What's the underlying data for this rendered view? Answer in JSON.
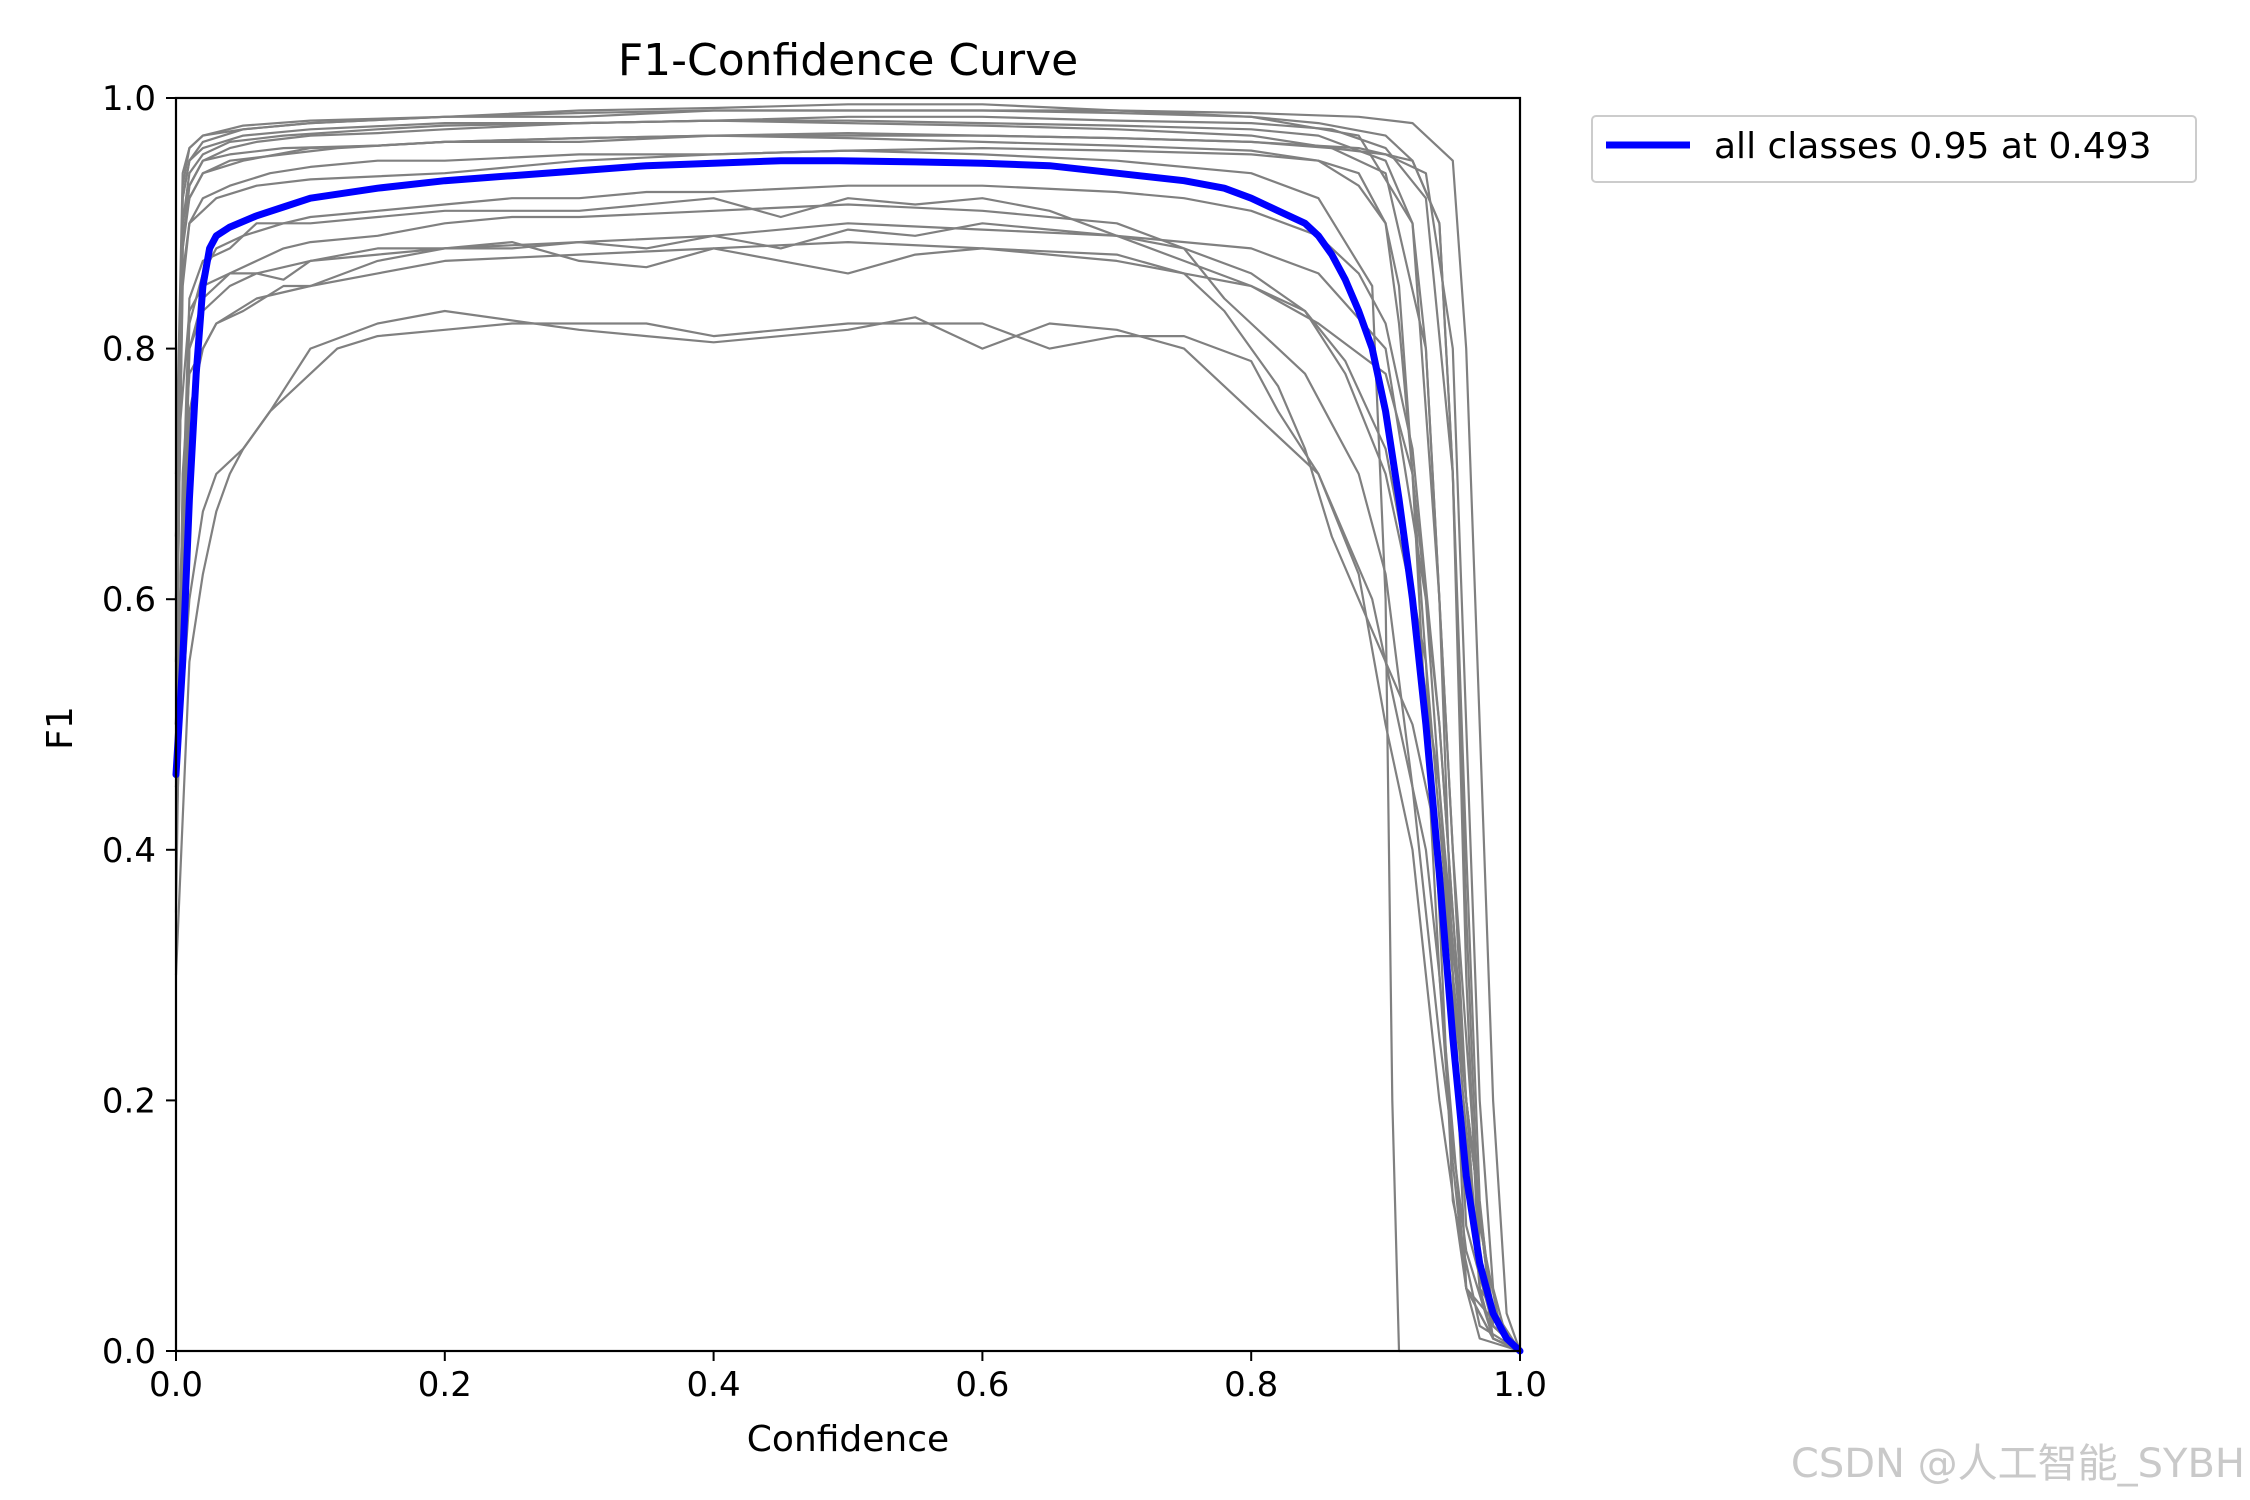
{
  "chart_data": {
    "type": "line",
    "title": "F1-Confidence Curve",
    "xlabel": "Confidence",
    "ylabel": "F1",
    "xlim": [
      0.0,
      1.0
    ],
    "ylim": [
      0.0,
      1.0
    ],
    "xticks": [
      "0.0",
      "0.2",
      "0.4",
      "0.6",
      "0.8",
      "1.0"
    ],
    "yticks": [
      "0.0",
      "0.2",
      "0.4",
      "0.6",
      "0.8",
      "1.0"
    ],
    "grid": false,
    "legend": {
      "placement": "outside-top-right",
      "entries": [
        "all classes 0.95 at 0.493"
      ]
    },
    "colors": {
      "per_class": "#808080",
      "all_classes": "#0000ff"
    },
    "series": [
      {
        "name": "all classes 0.95 at 0.493",
        "color": "#0000ff",
        "x": [
          0.0,
          0.005,
          0.01,
          0.015,
          0.02,
          0.025,
          0.03,
          0.04,
          0.06,
          0.08,
          0.1,
          0.15,
          0.2,
          0.25,
          0.3,
          0.35,
          0.4,
          0.45,
          0.493,
          0.55,
          0.6,
          0.65,
          0.7,
          0.75,
          0.78,
          0.8,
          0.82,
          0.84,
          0.85,
          0.86,
          0.87,
          0.88,
          0.89,
          0.9,
          0.91,
          0.92,
          0.93,
          0.94,
          0.95,
          0.96,
          0.97,
          0.98,
          0.99,
          1.0
        ],
        "y": [
          0.46,
          0.55,
          0.68,
          0.78,
          0.85,
          0.88,
          0.89,
          0.897,
          0.906,
          0.913,
          0.92,
          0.928,
          0.934,
          0.938,
          0.942,
          0.946,
          0.948,
          0.95,
          0.95,
          0.949,
          0.948,
          0.946,
          0.94,
          0.934,
          0.928,
          0.92,
          0.91,
          0.9,
          0.89,
          0.875,
          0.855,
          0.83,
          0.8,
          0.75,
          0.68,
          0.6,
          0.5,
          0.38,
          0.25,
          0.14,
          0.07,
          0.03,
          0.01,
          0.0
        ]
      }
    ],
    "per_class_series": [
      {
        "x": [
          0,
          0.005,
          0.01,
          0.02,
          0.04,
          0.06,
          0.1,
          0.15,
          0.2,
          0.3,
          0.4,
          0.5,
          0.6,
          0.7,
          0.8,
          0.86,
          0.9,
          0.93,
          0.95,
          0.97,
          0.985,
          1.0
        ],
        "y": [
          0.5,
          0.88,
          0.93,
          0.95,
          0.96,
          0.965,
          0.97,
          0.972,
          0.975,
          0.98,
          0.982,
          0.98,
          0.978,
          0.975,
          0.97,
          0.96,
          0.94,
          0.8,
          0.4,
          0.1,
          0.02,
          0.0
        ]
      },
      {
        "x": [
          0,
          0.005,
          0.01,
          0.02,
          0.05,
          0.1,
          0.2,
          0.3,
          0.4,
          0.5,
          0.6,
          0.7,
          0.8,
          0.88,
          0.92,
          0.94,
          0.96,
          0.97,
          0.98,
          1.0
        ],
        "y": [
          0.6,
          0.92,
          0.95,
          0.965,
          0.975,
          0.98,
          0.985,
          0.99,
          0.992,
          0.995,
          0.995,
          0.99,
          0.985,
          0.97,
          0.9,
          0.6,
          0.2,
          0.05,
          0.01,
          0.0
        ]
      },
      {
        "x": [
          0,
          0.005,
          0.01,
          0.03,
          0.06,
          0.1,
          0.15,
          0.2,
          0.3,
          0.4,
          0.5,
          0.6,
          0.7,
          0.8,
          0.85,
          0.9,
          0.93,
          0.95,
          0.96,
          0.98,
          1.0
        ],
        "y": [
          0.35,
          0.7,
          0.78,
          0.82,
          0.84,
          0.85,
          0.87,
          0.88,
          0.885,
          0.89,
          0.9,
          0.895,
          0.89,
          0.88,
          0.86,
          0.8,
          0.6,
          0.3,
          0.1,
          0.02,
          0.0
        ]
      },
      {
        "x": [
          0,
          0.01,
          0.02,
          0.03,
          0.04,
          0.05,
          0.07,
          0.1,
          0.15,
          0.2,
          0.3,
          0.35,
          0.4,
          0.5,
          0.55,
          0.6,
          0.65,
          0.7,
          0.75,
          0.8,
          0.85,
          0.88,
          0.9,
          0.92,
          0.94,
          0.96,
          0.98,
          1.0
        ],
        "y": [
          0.3,
          0.55,
          0.62,
          0.67,
          0.7,
          0.72,
          0.75,
          0.8,
          0.82,
          0.83,
          0.815,
          0.81,
          0.805,
          0.815,
          0.825,
          0.8,
          0.82,
          0.815,
          0.8,
          0.75,
          0.7,
          0.62,
          0.5,
          0.4,
          0.2,
          0.05,
          0.01,
          0.0
        ]
      },
      {
        "x": [
          0,
          0.01,
          0.02,
          0.04,
          0.06,
          0.08,
          0.1,
          0.15,
          0.2,
          0.25,
          0.3,
          0.35,
          0.4,
          0.45,
          0.5,
          0.55,
          0.6,
          0.7,
          0.75,
          0.78,
          0.8,
          0.82,
          0.84,
          0.86,
          0.88,
          0.9,
          0.92,
          0.94,
          0.96,
          0.98,
          1.0
        ],
        "y": [
          0.7,
          0.83,
          0.85,
          0.86,
          0.86,
          0.855,
          0.87,
          0.88,
          0.88,
          0.885,
          0.87,
          0.865,
          0.88,
          0.87,
          0.86,
          0.875,
          0.88,
          0.875,
          0.86,
          0.83,
          0.8,
          0.77,
          0.72,
          0.65,
          0.6,
          0.55,
          0.5,
          0.4,
          0.2,
          0.03,
          0.0
        ]
      },
      {
        "x": [
          0,
          0.005,
          0.01,
          0.03,
          0.06,
          0.1,
          0.2,
          0.3,
          0.4,
          0.5,
          0.6,
          0.7,
          0.8,
          0.85,
          0.88,
          0.9,
          0.91,
          0.92,
          0.93,
          0.94,
          0.96,
          0.98,
          1.0
        ],
        "y": [
          0.55,
          0.85,
          0.9,
          0.92,
          0.93,
          0.935,
          0.94,
          0.95,
          0.955,
          0.958,
          0.96,
          0.958,
          0.955,
          0.95,
          0.93,
          0.9,
          0.85,
          0.7,
          0.5,
          0.3,
          0.05,
          0.01,
          0.0
        ]
      },
      {
        "x": [
          0,
          0.005,
          0.01,
          0.02,
          0.05,
          0.1,
          0.2,
          0.3,
          0.4,
          0.5,
          0.6,
          0.7,
          0.8,
          0.85,
          0.9,
          0.92,
          0.94,
          0.95,
          0.96,
          0.97,
          0.98,
          1.0
        ],
        "y": [
          0.65,
          0.93,
          0.96,
          0.97,
          0.975,
          0.98,
          0.985,
          0.985,
          0.99,
          0.99,
          0.99,
          0.988,
          0.985,
          0.98,
          0.97,
          0.95,
          0.9,
          0.7,
          0.3,
          0.05,
          0.01,
          0.0
        ]
      },
      {
        "x": [
          0,
          0.01,
          0.02,
          0.04,
          0.06,
          0.08,
          0.1,
          0.15,
          0.2,
          0.25,
          0.3,
          0.4,
          0.5,
          0.6,
          0.7,
          0.75,
          0.78,
          0.8,
          0.82,
          0.84,
          0.86,
          0.88,
          0.9,
          0.92,
          0.94,
          0.96,
          0.98,
          1.0
        ],
        "y": [
          0.4,
          0.8,
          0.84,
          0.86,
          0.87,
          0.88,
          0.885,
          0.89,
          0.9,
          0.905,
          0.905,
          0.91,
          0.915,
          0.91,
          0.9,
          0.88,
          0.84,
          0.82,
          0.8,
          0.78,
          0.74,
          0.7,
          0.62,
          0.45,
          0.25,
          0.08,
          0.01,
          0.0
        ]
      },
      {
        "x": [
          0,
          0.005,
          0.01,
          0.02,
          0.04,
          0.08,
          0.12,
          0.2,
          0.3,
          0.4,
          0.5,
          0.6,
          0.7,
          0.8,
          0.85,
          0.88,
          0.9,
          0.91,
          0.92,
          0.93,
          0.94,
          0.95,
          0.97,
          1.0
        ],
        "y": [
          0.5,
          0.89,
          0.92,
          0.94,
          0.95,
          0.955,
          0.96,
          0.965,
          0.965,
          0.97,
          0.968,
          0.965,
          0.962,
          0.958,
          0.95,
          0.94,
          0.9,
          0.82,
          0.7,
          0.55,
          0.35,
          0.12,
          0.02,
          0.0
        ]
      },
      {
        "x": [
          0,
          0.01,
          0.02,
          0.03,
          0.05,
          0.07,
          0.1,
          0.12,
          0.15,
          0.2,
          0.25,
          0.3,
          0.35,
          0.4,
          0.45,
          0.5,
          0.55,
          0.6,
          0.65,
          0.7,
          0.75,
          0.8,
          0.82,
          0.85,
          0.87,
          0.89,
          0.9,
          0.91,
          0.92,
          0.93,
          0.94,
          0.95,
          0.96,
          0.97,
          1.0
        ],
        "y": [
          0.45,
          0.6,
          0.67,
          0.7,
          0.72,
          0.75,
          0.78,
          0.8,
          0.81,
          0.815,
          0.82,
          0.82,
          0.82,
          0.81,
          0.815,
          0.82,
          0.82,
          0.82,
          0.8,
          0.81,
          0.81,
          0.79,
          0.75,
          0.7,
          0.65,
          0.6,
          0.55,
          0.5,
          0.45,
          0.4,
          0.3,
          0.15,
          0.05,
          0.01,
          0.0
        ]
      },
      {
        "x": [
          0,
          0.005,
          0.01,
          0.02,
          0.04,
          0.08,
          0.15,
          0.2,
          0.3,
          0.4,
          0.5,
          0.6,
          0.7,
          0.8,
          0.86,
          0.9,
          0.93,
          0.95,
          0.96,
          0.97,
          0.98,
          0.99,
          1.0
        ],
        "y": [
          0.6,
          0.9,
          0.93,
          0.95,
          0.955,
          0.96,
          0.962,
          0.965,
          0.968,
          0.97,
          0.97,
          0.97,
          0.968,
          0.965,
          0.96,
          0.955,
          0.94,
          0.8,
          0.5,
          0.2,
          0.05,
          0.01,
          0.0
        ]
      },
      {
        "x": [
          0,
          0.01,
          0.02,
          0.04,
          0.06,
          0.1,
          0.15,
          0.2,
          0.25,
          0.3,
          0.4,
          0.45,
          0.5,
          0.55,
          0.6,
          0.65,
          0.7,
          0.75,
          0.8,
          0.84,
          0.87,
          0.9,
          0.92,
          0.94,
          0.96,
          0.98,
          1.0
        ],
        "y": [
          0.5,
          0.84,
          0.87,
          0.88,
          0.9,
          0.9,
          0.905,
          0.91,
          0.91,
          0.91,
          0.92,
          0.905,
          0.92,
          0.915,
          0.92,
          0.91,
          0.89,
          0.87,
          0.85,
          0.83,
          0.78,
          0.7,
          0.6,
          0.45,
          0.2,
          0.02,
          0.0
        ]
      },
      {
        "x": [
          0,
          0.005,
          0.01,
          0.02,
          0.05,
          0.1,
          0.2,
          0.3,
          0.4,
          0.5,
          0.6,
          0.7,
          0.8,
          0.88,
          0.92,
          0.95,
          0.96,
          0.97,
          0.98,
          0.99,
          1.0
        ],
        "y": [
          0.7,
          0.94,
          0.96,
          0.97,
          0.978,
          0.982,
          0.985,
          0.988,
          0.99,
          0.99,
          0.99,
          0.99,
          0.988,
          0.985,
          0.98,
          0.95,
          0.8,
          0.5,
          0.2,
          0.03,
          0.0
        ]
      },
      {
        "x": [
          0,
          0.01,
          0.02,
          0.03,
          0.05,
          0.08,
          0.1,
          0.15,
          0.2,
          0.3,
          0.4,
          0.5,
          0.6,
          0.7,
          0.75,
          0.8,
          0.85,
          0.9,
          0.92,
          0.94,
          0.96,
          0.98,
          1.0
        ],
        "y": [
          0.4,
          0.75,
          0.8,
          0.82,
          0.83,
          0.85,
          0.85,
          0.86,
          0.87,
          0.875,
          0.88,
          0.885,
          0.88,
          0.87,
          0.86,
          0.85,
          0.82,
          0.78,
          0.7,
          0.5,
          0.2,
          0.02,
          0.0
        ]
      },
      {
        "x": [
          0,
          0.005,
          0.01,
          0.02,
          0.04,
          0.07,
          0.1,
          0.15,
          0.2,
          0.3,
          0.4,
          0.5,
          0.6,
          0.7,
          0.8,
          0.85,
          0.89,
          0.9,
          0.905,
          0.91,
          1.0
        ],
        "y": [
          0.55,
          0.86,
          0.9,
          0.92,
          0.93,
          0.94,
          0.945,
          0.95,
          0.95,
          0.955,
          0.955,
          0.958,
          0.955,
          0.95,
          0.94,
          0.92,
          0.85,
          0.6,
          0.2,
          0.0,
          0.0
        ]
      },
      {
        "x": [
          0,
          0.005,
          0.01,
          0.02,
          0.05,
          0.1,
          0.15,
          0.2,
          0.3,
          0.4,
          0.5,
          0.6,
          0.7,
          0.8,
          0.88,
          0.92,
          0.94,
          0.95,
          0.96,
          0.97,
          0.98,
          1.0
        ],
        "y": [
          0.5,
          0.88,
          0.92,
          0.94,
          0.95,
          0.96,
          0.962,
          0.965,
          0.968,
          0.97,
          0.972,
          0.97,
          0.968,
          0.965,
          0.96,
          0.95,
          0.9,
          0.7,
          0.35,
          0.08,
          0.01,
          0.0
        ]
      },
      {
        "x": [
          0,
          0.01,
          0.02,
          0.04,
          0.06,
          0.1,
          0.15,
          0.2,
          0.25,
          0.3,
          0.35,
          0.4,
          0.45,
          0.5,
          0.55,
          0.6,
          0.65,
          0.7,
          0.75,
          0.8,
          0.84,
          0.87,
          0.9,
          0.93,
          0.95,
          0.97,
          1.0
        ],
        "y": [
          0.45,
          0.8,
          0.83,
          0.85,
          0.86,
          0.87,
          0.875,
          0.88,
          0.88,
          0.885,
          0.88,
          0.89,
          0.88,
          0.895,
          0.89,
          0.9,
          0.895,
          0.89,
          0.88,
          0.86,
          0.83,
          0.79,
          0.72,
          0.55,
          0.3,
          0.05,
          0.0
        ]
      },
      {
        "x": [
          0,
          0.005,
          0.01,
          0.02,
          0.04,
          0.08,
          0.15,
          0.2,
          0.3,
          0.4,
          0.5,
          0.6,
          0.7,
          0.8,
          0.85,
          0.9,
          0.92,
          0.93,
          0.94,
          0.95,
          0.96,
          1.0
        ],
        "y": [
          0.6,
          0.9,
          0.94,
          0.955,
          0.965,
          0.97,
          0.975,
          0.978,
          0.98,
          0.982,
          0.982,
          0.98,
          0.978,
          0.975,
          0.97,
          0.95,
          0.9,
          0.8,
          0.6,
          0.3,
          0.05,
          0.0
        ]
      },
      {
        "x": [
          0,
          0.01,
          0.02,
          0.03,
          0.05,
          0.08,
          0.1,
          0.15,
          0.2,
          0.25,
          0.3,
          0.35,
          0.4,
          0.5,
          0.6,
          0.7,
          0.75,
          0.8,
          0.85,
          0.88,
          0.9,
          0.92,
          0.94,
          0.96,
          0.98,
          1.0
        ],
        "y": [
          0.5,
          0.82,
          0.86,
          0.88,
          0.89,
          0.9,
          0.905,
          0.91,
          0.915,
          0.92,
          0.92,
          0.925,
          0.925,
          0.93,
          0.93,
          0.925,
          0.92,
          0.91,
          0.89,
          0.86,
          0.82,
          0.72,
          0.5,
          0.2,
          0.02,
          0.0
        ]
      },
      {
        "x": [
          0,
          0.005,
          0.01,
          0.02,
          0.05,
          0.1,
          0.2,
          0.3,
          0.4,
          0.5,
          0.6,
          0.7,
          0.8,
          0.86,
          0.9,
          0.93,
          0.95,
          0.96,
          0.97,
          0.98,
          1.0
        ],
        "y": [
          0.65,
          0.92,
          0.95,
          0.96,
          0.97,
          0.975,
          0.98,
          0.98,
          0.982,
          0.985,
          0.985,
          0.982,
          0.98,
          0.975,
          0.96,
          0.92,
          0.7,
          0.4,
          0.12,
          0.02,
          0.0
        ]
      }
    ]
  },
  "watermark": "CSDN @人工智能_SYBH"
}
